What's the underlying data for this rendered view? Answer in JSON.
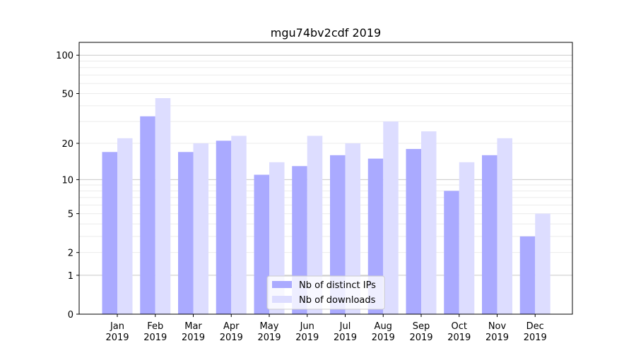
{
  "chart_data": {
    "type": "bar",
    "title": "mgu74bv2cdf 2019",
    "xlabel": "",
    "ylabel": "",
    "yscale": "symlog (log10(1+y))",
    "ylim": [
      0,
      126
    ],
    "grid": true,
    "legend_position": "lower-center",
    "categories": [
      "Jan\n2019",
      "Feb\n2019",
      "Mar\n2019",
      "Apr\n2019",
      "May\n2019",
      "Jun\n2019",
      "Jul\n2019",
      "Aug\n2019",
      "Sep\n2019",
      "Oct\n2019",
      "Nov\n2019",
      "Dec\n2019"
    ],
    "category_labels": [
      [
        "Jan",
        "2019"
      ],
      [
        "Feb",
        "2019"
      ],
      [
        "Mar",
        "2019"
      ],
      [
        "Apr",
        "2019"
      ],
      [
        "May",
        "2019"
      ],
      [
        "Jun",
        "2019"
      ],
      [
        "Jul",
        "2019"
      ],
      [
        "Aug",
        "2019"
      ],
      [
        "Sep",
        "2019"
      ],
      [
        "Oct",
        "2019"
      ],
      [
        "Nov",
        "2019"
      ],
      [
        "Dec",
        "2019"
      ]
    ],
    "yticks": [
      0,
      1,
      2,
      5,
      10,
      20,
      50,
      100
    ],
    "series": [
      {
        "name": "Nb of distinct IPs",
        "color": "#aaaaff",
        "values": [
          17,
          33,
          17,
          21,
          11,
          13,
          16,
          15,
          18,
          8,
          16,
          3
        ]
      },
      {
        "name": "Nb of downloads",
        "color": "#ddddff",
        "values": [
          22,
          46,
          20,
          23,
          14,
          23,
          20,
          30,
          25,
          14,
          22,
          5
        ]
      }
    ]
  }
}
